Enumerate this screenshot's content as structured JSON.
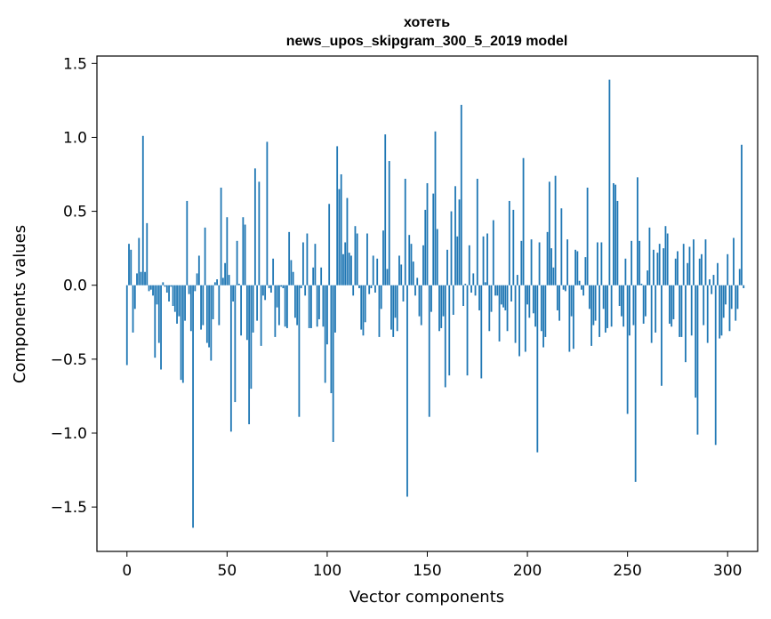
{
  "chart_data": {
    "type": "bar",
    "title_line1": "хотеть",
    "title_line2": "news_upos_skipgram_300_5_2019 model",
    "xlabel": "Vector components",
    "ylabel": "Components values",
    "xlim": [
      -15,
      315
    ],
    "ylim": [
      -1.8,
      1.55
    ],
    "xticks": [
      0,
      50,
      100,
      150,
      200,
      250,
      300
    ],
    "yticks": [
      1.5,
      1.0,
      0.5,
      0.0,
      -0.5,
      -1.0,
      -1.5
    ],
    "ytick_labels": [
      "1.5",
      "1.0",
      "0.5",
      "0.0",
      "−0.5",
      "−1.0",
      "−1.5"
    ],
    "bar_color": "#1f77b4",
    "values": [
      -0.54,
      0.28,
      0.24,
      -0.32,
      -0.16,
      0.08,
      0.32,
      0.09,
      1.01,
      0.09,
      0.42,
      -0.04,
      -0.03,
      -0.07,
      -0.49,
      -0.13,
      -0.39,
      -0.57,
      0.02,
      -0.01,
      -0.05,
      -0.11,
      -0.01,
      -0.14,
      -0.18,
      -0.26,
      -0.21,
      -0.64,
      -0.66,
      -0.24,
      0.57,
      -0.06,
      -0.31,
      -1.64,
      -0.04,
      0.08,
      0.2,
      -0.3,
      -0.27,
      0.39,
      -0.39,
      -0.42,
      -0.51,
      -0.23,
      0.02,
      0.04,
      -0.27,
      0.66,
      0.05,
      0.15,
      0.46,
      0.07,
      -0.99,
      -0.11,
      -0.79,
      0.3,
      0.01,
      -0.34,
      0.46,
      0.41,
      -0.37,
      -0.94,
      -0.7,
      -0.32,
      0.79,
      -0.24,
      0.7,
      -0.41,
      -0.07,
      -0.1,
      0.97,
      -0.02,
      -0.05,
      0.18,
      -0.35,
      -0.15,
      -0.27,
      -0.01,
      -0.02,
      -0.28,
      -0.29,
      0.36,
      0.17,
      0.09,
      -0.22,
      -0.27,
      -0.89,
      -0.02,
      0.29,
      -0.07,
      0.35,
      -0.29,
      -0.29,
      0.12,
      0.28,
      -0.28,
      -0.23,
      0.12,
      -0.28,
      -0.66,
      -0.4,
      0.55,
      -0.73,
      -1.06,
      -0.32,
      0.94,
      0.65,
      0.75,
      0.21,
      0.29,
      0.59,
      0.22,
      0.2,
      -0.07,
      0.4,
      0.35,
      -0.02,
      -0.3,
      -0.34,
      -0.25,
      0.35,
      -0.06,
      -0.02,
      0.2,
      -0.05,
      0.18,
      -0.35,
      -0.16,
      0.37,
      1.02,
      0.11,
      0.84,
      -0.3,
      -0.35,
      -0.22,
      -0.31,
      0.2,
      0.14,
      -0.11,
      0.72,
      -1.43,
      0.34,
      0.28,
      0.16,
      -0.07,
      0.05,
      -0.21,
      -0.27,
      0.27,
      0.51,
      0.69,
      -0.89,
      -0.18,
      0.62,
      1.04,
      0.38,
      -0.31,
      -0.29,
      -0.21,
      -0.69,
      0.24,
      -0.61,
      0.5,
      -0.2,
      0.67,
      0.33,
      0.58,
      1.22,
      -0.14,
      0.01,
      -0.61,
      0.27,
      -0.05,
      0.08,
      -0.07,
      0.72,
      -0.17,
      -0.63,
      0.33,
      0.02,
      0.35,
      -0.31,
      -0.18,
      0.44,
      -0.07,
      -0.07,
      -0.38,
      -0.13,
      -0.15,
      -0.17,
      -0.31,
      0.57,
      -0.11,
      0.51,
      -0.39,
      0.07,
      -0.48,
      0.3,
      0.86,
      -0.45,
      -0.13,
      -0.22,
      0.31,
      -0.19,
      -0.28,
      -1.13,
      0.29,
      -0.31,
      -0.42,
      -0.35,
      0.36,
      0.7,
      0.25,
      0.12,
      0.74,
      -0.17,
      -0.24,
      0.52,
      -0.03,
      -0.04,
      0.31,
      -0.45,
      -0.21,
      -0.43,
      0.24,
      0.23,
      0.03,
      -0.03,
      -0.07,
      0.19,
      0.66,
      -0.16,
      -0.41,
      -0.27,
      -0.24,
      0.29,
      -0.35,
      0.29,
      -0.16,
      -0.32,
      -0.29,
      1.39,
      -0.28,
      0.69,
      0.68,
      0.57,
      -0.14,
      -0.21,
      -0.28,
      0.18,
      -0.87,
      -0.34,
      0.3,
      -0.27,
      -1.33,
      0.73,
      0.3,
      0.01,
      -0.26,
      -0.21,
      0.1,
      0.39,
      -0.39,
      0.24,
      -0.32,
      0.22,
      0.28,
      -0.68,
      0.25,
      0.4,
      0.35,
      -0.26,
      -0.28,
      -0.23,
      0.18,
      0.23,
      -0.35,
      -0.35,
      0.28,
      -0.52,
      0.15,
      0.26,
      -0.34,
      0.31,
      -0.76,
      -1.01,
      0.18,
      0.21,
      -0.27,
      0.31,
      -0.39,
      0.04,
      -0.06,
      0.07,
      -1.08,
      0.15,
      -0.36,
      -0.34,
      -0.22,
      -0.13,
      0.21,
      -0.31,
      -0.16,
      0.32,
      -0.24,
      -0.16,
      0.11,
      0.95,
      -0.02
    ]
  }
}
